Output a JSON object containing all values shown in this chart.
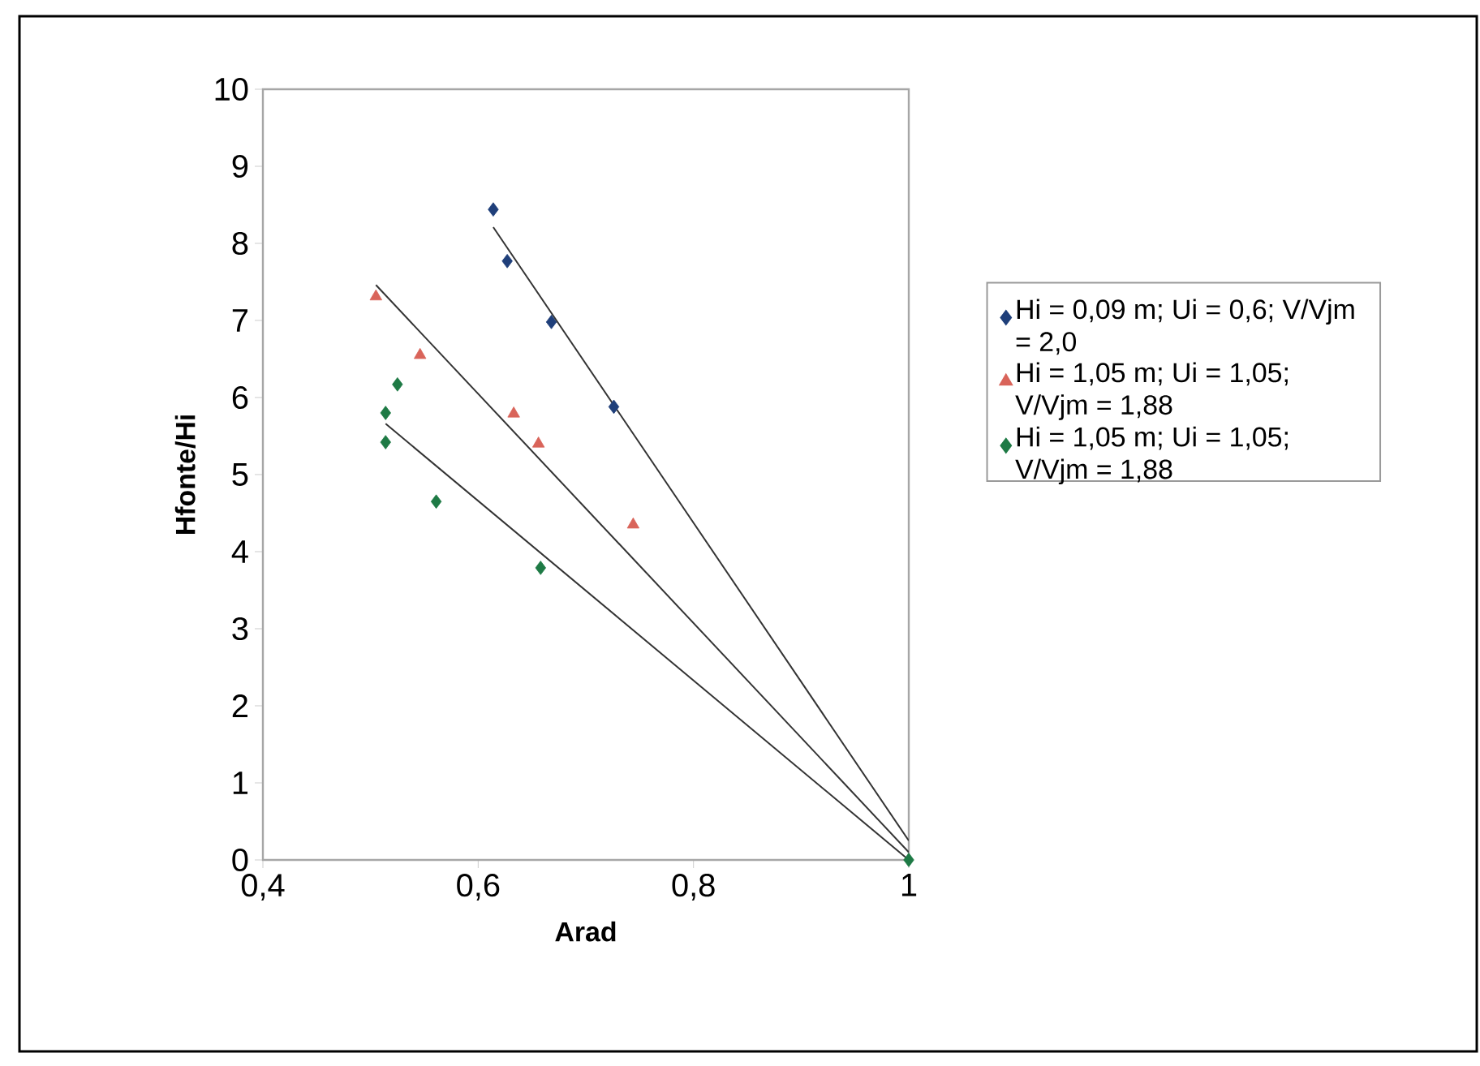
{
  "chart_data": {
    "type": "scatter",
    "xlabel": "Arad",
    "ylabel": "Hfonte/Hi",
    "xlim": [
      0.4,
      1.0
    ],
    "ylim": [
      0,
      10
    ],
    "xticks": [
      {
        "value": 0.4,
        "label": "0,4"
      },
      {
        "value": 0.6,
        "label": "0,6"
      },
      {
        "value": 0.8,
        "label": "0,8"
      },
      1
    ],
    "yticks": [
      0,
      1,
      2,
      3,
      4,
      5,
      6,
      7,
      8,
      9,
      10
    ],
    "grid": false,
    "legend": "right",
    "series": [
      {
        "name": "Hi = 0,09 m; Ui = 0,6; V/Vjm = 2,0",
        "color": "#1f3f7a",
        "marker": "diamond",
        "x": [
          0.614,
          0.627,
          0.668,
          0.726
        ],
        "values": [
          8.44,
          7.77,
          6.98,
          5.88
        ]
      },
      {
        "name": "Hi = 1,05 m; Ui = 1,05; V/Vjm = 1,88",
        "color": "#d9645a",
        "marker": "triangle",
        "x": [
          0.505,
          0.546,
          0.633,
          0.656,
          0.744
        ],
        "values": [
          7.31,
          6.55,
          5.79,
          5.4,
          4.35
        ]
      },
      {
        "name": "Hi = 1,05 m; Ui = 1,05; V/Vjm = 1,88",
        "color": "#1e7a45",
        "marker": "diamond",
        "x": [
          0.525,
          0.514,
          0.514,
          0.561,
          0.658,
          1.0
        ],
        "values": [
          6.17,
          5.8,
          5.42,
          4.65,
          3.79,
          0
        ]
      },
      {
        "type": "line",
        "color": "#333333",
        "marker": "none",
        "x": [
          0.614,
          1.0
        ],
        "values": [
          8.21,
          0.25
        ]
      },
      {
        "type": "line",
        "color": "#333333",
        "marker": "none",
        "x": [
          0.505,
          1.0
        ],
        "values": [
          7.46,
          0.1
        ]
      },
      {
        "type": "line",
        "color": "#333333",
        "marker": "none",
        "x": [
          0.514,
          1.0
        ],
        "values": [
          5.66,
          0
        ]
      }
    ]
  }
}
